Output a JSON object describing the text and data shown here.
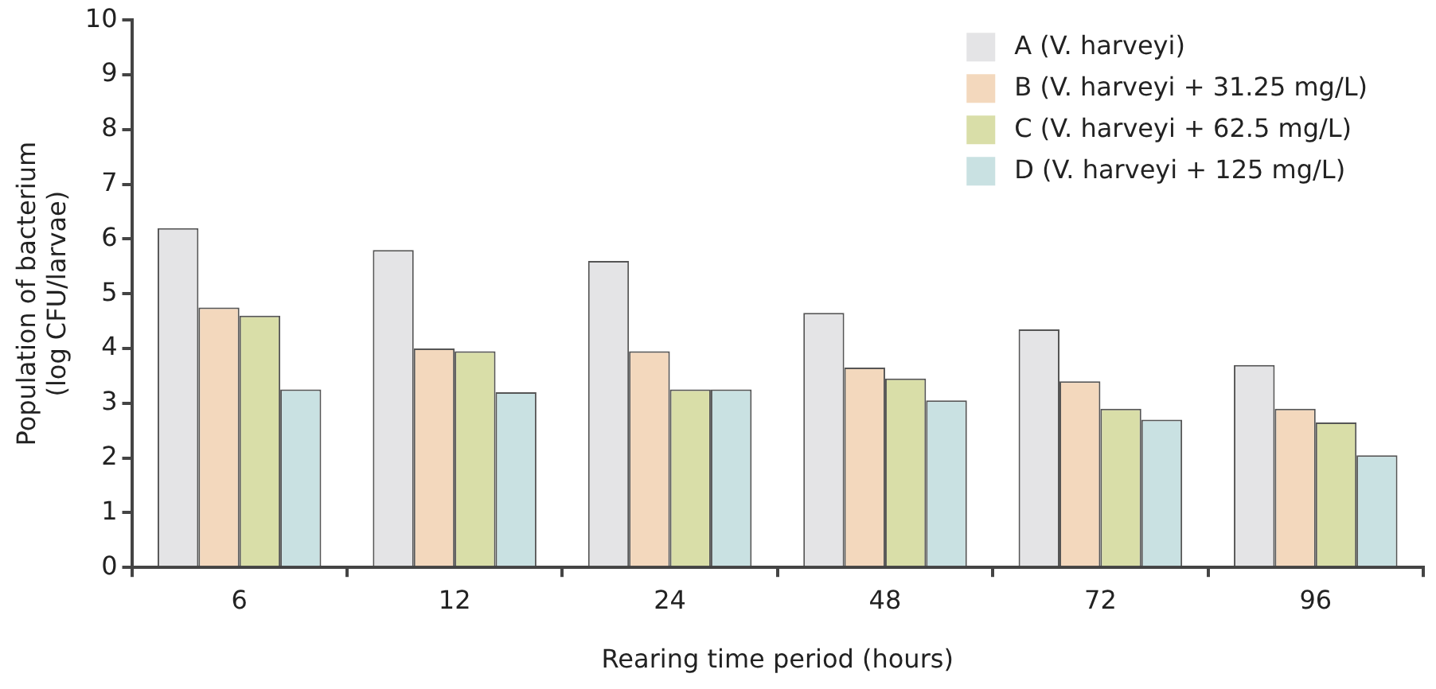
{
  "chart_data": {
    "type": "bar",
    "xlabel": "Rearing time period (hours)",
    "ylabel": "Population of bacterium\n(log CFU/larvae)",
    "categories": [
      "6",
      "12",
      "24",
      "48",
      "72",
      "96"
    ],
    "series": [
      {
        "name": "A (V. harveyi)",
        "color": "#e4e4e6",
        "values": [
          6.2,
          5.8,
          5.6,
          4.65,
          4.35,
          3.7
        ]
      },
      {
        "name": "B (V. harveyi + 31.25 mg/L)",
        "color": "#f3d8bd",
        "values": [
          4.75,
          4.0,
          3.95,
          3.65,
          3.4,
          2.9
        ]
      },
      {
        "name": "C (V. harveyi + 62.5 mg/L)",
        "color": "#d9dea8",
        "values": [
          4.6,
          3.95,
          3.25,
          3.45,
          2.9,
          2.65
        ]
      },
      {
        "name": "D (V. harveyi + 125 mg/L)",
        "color": "#c9e1e2",
        "values": [
          3.25,
          3.2,
          3.25,
          3.05,
          2.7,
          2.05
        ]
      }
    ],
    "ylim": [
      0,
      10
    ],
    "yticks": [
      0,
      1,
      2,
      3,
      4,
      5,
      6,
      7,
      8,
      9,
      10
    ],
    "grid": false,
    "legend": "top right"
  }
}
